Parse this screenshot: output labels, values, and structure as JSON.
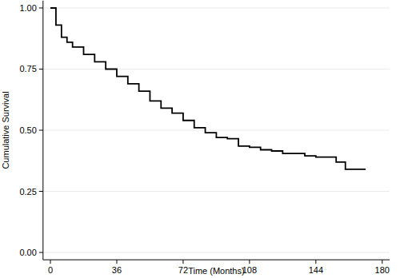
{
  "chart_data": {
    "type": "step",
    "x_label": "Time (Months)",
    "y_label": "Cumulative Survival",
    "x": [
      0,
      3,
      6,
      9,
      12,
      18,
      24,
      30,
      36,
      42,
      48,
      54,
      60,
      66,
      72,
      78,
      84,
      90,
      96,
      102,
      108,
      114,
      120,
      126,
      132,
      138,
      144,
      150,
      155,
      160,
      171
    ],
    "values": [
      1.0,
      0.93,
      0.88,
      0.86,
      0.84,
      0.81,
      0.78,
      0.75,
      0.72,
      0.69,
      0.66,
      0.62,
      0.59,
      0.57,
      0.54,
      0.51,
      0.49,
      0.47,
      0.465,
      0.435,
      0.43,
      0.42,
      0.415,
      0.405,
      0.405,
      0.395,
      0.39,
      0.39,
      0.37,
      0.34,
      0.34
    ],
    "color": "#000000",
    "xlim": [
      -4,
      184
    ],
    "xticks": [
      0,
      36,
      72,
      108,
      144,
      180
    ],
    "ylim": [
      -0.03,
      1.03
    ],
    "yticks": [
      {
        "value": 0,
        "label": "0.00"
      },
      {
        "value": 0.25,
        "label": "0.25"
      },
      {
        "value": 0.5,
        "label": "0.50"
      },
      {
        "value": 0.75,
        "label": "0.75"
      },
      {
        "value": 1,
        "label": "1.00"
      }
    ],
    "grid": true
  }
}
